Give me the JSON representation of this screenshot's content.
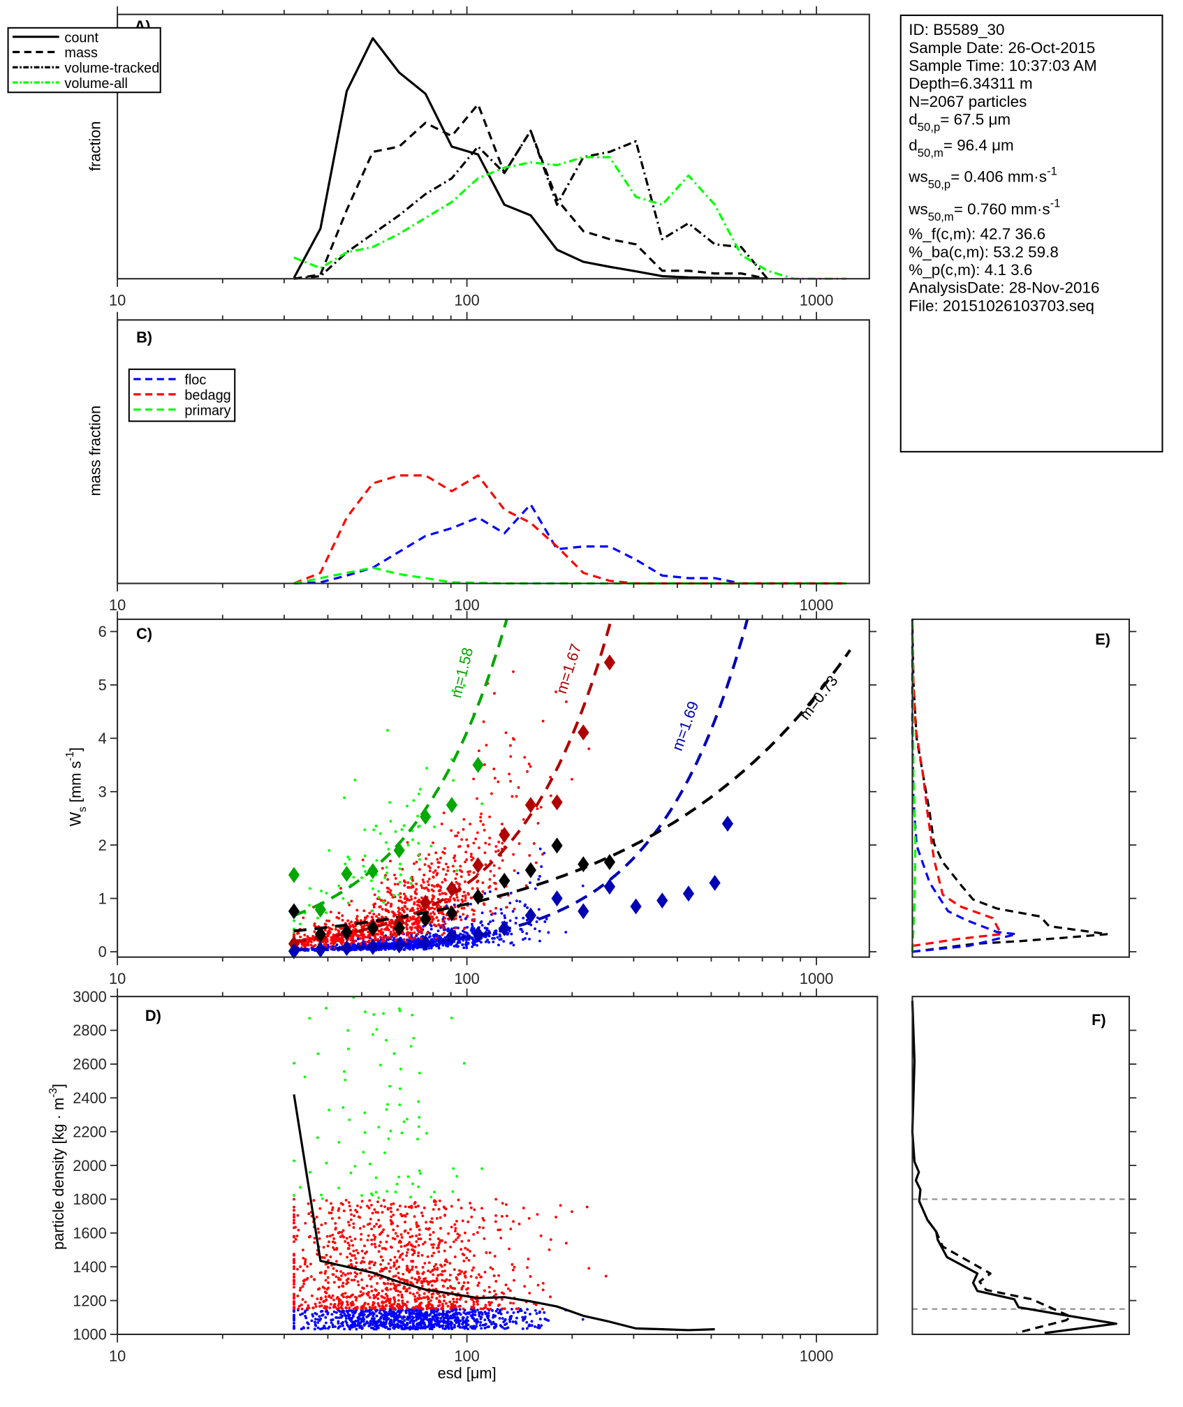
{
  "info": {
    "id": "ID: B5589_30",
    "sample_date": "Sample Date: 26-Oct-2015",
    "sample_time": "Sample Time: 10:37:03 AM",
    "depth": "Depth=6.34311 m",
    "n": "N=2067 particles",
    "d50p": {
      "base": "d",
      "sub": "50,p",
      "rest": "=  67.5 μm"
    },
    "d50m": {
      "base": "d",
      "sub": "50,m",
      "rest": "=  96.4 μm"
    },
    "ws50p": {
      "base": "ws",
      "sub": "50,p",
      "rest": "= 0.406 mm·s",
      "sup": "-1"
    },
    "ws50m": {
      "base": "ws",
      "sub": "50,m",
      "rest": "= 0.760 mm·s",
      "sup": "-1"
    },
    "pct_f": "%_f(c,m): 42.7 36.6",
    "pct_ba": "%_ba(c,m): 53.2 59.8",
    "pct_p": "%_p(c,m): 4.1 3.6",
    "analysis_date": "AnalysisDate: 28-Nov-2016",
    "file": "File: 20151026103703.seq"
  },
  "colors": {
    "floc": "#0000ff",
    "bedagg": "#ff0000",
    "primary": "#00ff00",
    "floc_dark": "#0000b4",
    "bedagg_dark": "#b00000",
    "primary_dark": "#00a800",
    "all": "#000000",
    "threshold": "#8c8c8c"
  },
  "chart_data": [
    {
      "panel": "A",
      "label": "A)",
      "type": "line",
      "ylabel": "fraction",
      "xscale": "log",
      "xlim": [
        10,
        1400
      ],
      "ylim": [
        0,
        1
      ],
      "xtick_labels": [
        "10",
        "100",
        "1000"
      ],
      "yticks": [],
      "legend": "top-left",
      "x": [
        32,
        38.1,
        45.3,
        53.8,
        64,
        76.1,
        90.5,
        107.6,
        128,
        152.2,
        181,
        215.3,
        256,
        304.4,
        362,
        430.5,
        512,
        608.9,
        724.1,
        861.1,
        1024,
        1217.7
      ],
      "series": [
        {
          "name": "count",
          "style": "solid",
          "color": "#000000",
          "values": [
            0.003,
            0.19,
            0.71,
            0.91,
            0.78,
            0.7,
            0.5,
            0.47,
            0.28,
            0.24,
            0.11,
            0.064,
            0.045,
            0.028,
            0.01,
            0.005,
            0.003,
            0.002,
            0.001,
            null,
            null,
            null
          ]
        },
        {
          "name": "mass",
          "style": "dashed",
          "color": "#000000",
          "values": [
            0,
            0.016,
            0.26,
            0.48,
            0.5,
            0.59,
            0.54,
            0.66,
            0.4,
            0.56,
            0.3,
            0.18,
            0.15,
            0.13,
            0.03,
            0.03,
            0.02,
            0.02,
            0,
            null,
            null,
            null
          ]
        },
        {
          "name": "volume-tracked",
          "style": "dashdot",
          "color": "#000000",
          "values": [
            0,
            0.01,
            0.1,
            0.17,
            0.24,
            0.32,
            0.38,
            0.5,
            0.4,
            0.56,
            0.28,
            0.46,
            0.48,
            0.52,
            0.15,
            0.21,
            0.13,
            0.12,
            0,
            null,
            null,
            null
          ]
        },
        {
          "name": "volume-all",
          "style": "dashdot",
          "color": "#00ff00",
          "values": [
            0.08,
            0.04,
            0.1,
            0.12,
            0.17,
            0.23,
            0.29,
            0.38,
            0.42,
            0.44,
            0.43,
            0.46,
            0.46,
            0.31,
            0.28,
            0.39,
            0.28,
            0.09,
            0.03,
            0,
            0,
            0
          ]
        }
      ]
    },
    {
      "panel": "B",
      "label": "B)",
      "type": "line",
      "ylabel": "mass fraction",
      "xscale": "log",
      "xlim": [
        10,
        1400
      ],
      "ylim": [
        0,
        1
      ],
      "xtick_labels": [
        "10",
        "100",
        "1000"
      ],
      "yticks": [],
      "legend": "top-left",
      "x": [
        32,
        38.1,
        45.3,
        53.8,
        64,
        76.1,
        90.5,
        107.6,
        128,
        152.2,
        181,
        215.3,
        256,
        304.4,
        362,
        430.5,
        512,
        608.9,
        724.1,
        861.1,
        1024,
        1217.7
      ],
      "series": [
        {
          "name": "floc",
          "style": "dashed",
          "color": "#0000ff",
          "values": [
            0,
            0.004,
            0.03,
            0.06,
            0.12,
            0.18,
            0.21,
            0.25,
            0.19,
            0.3,
            0.13,
            0.14,
            0.14,
            0.09,
            0.03,
            0.02,
            0.02,
            0,
            0,
            0,
            0,
            0
          ]
        },
        {
          "name": "bedagg",
          "style": "dashed",
          "color": "#ff0000",
          "values": [
            0,
            0.04,
            0.25,
            0.38,
            0.41,
            0.41,
            0.35,
            0.41,
            0.28,
            0.23,
            0.14,
            0.04,
            0.01,
            0,
            0,
            0,
            0,
            0,
            0,
            0,
            0,
            0
          ]
        },
        {
          "name": "primary",
          "style": "dashed",
          "color": "#00ff00",
          "values": [
            0,
            0.02,
            0.04,
            0.06,
            0.035,
            0.02,
            0.004,
            0.002,
            0,
            0,
            0,
            0,
            0,
            0,
            0,
            0,
            0,
            0,
            0,
            0,
            0,
            0
          ]
        }
      ]
    },
    {
      "panel": "C",
      "label": "C)",
      "type": "scatter",
      "ylabel": {
        "base": "W",
        "sub": "s",
        "rest": " [mm s",
        "sup": "-1",
        "end": "]"
      },
      "xscale": "log",
      "xlim": [
        10,
        1400
      ],
      "ylim": [
        -0.1,
        6.23
      ],
      "xtick_labels": [
        "10",
        "100",
        "1000"
      ],
      "yticks": [
        0,
        1,
        2,
        3,
        4,
        5,
        6
      ],
      "x": [
        32,
        38.1,
        45.3,
        53.8,
        64,
        76.1,
        90.5,
        107.6,
        128,
        152.2,
        181,
        215.3,
        256,
        304.4,
        362,
        430.5,
        512,
        557
      ],
      "bin_medians": [
        {
          "class": "primary",
          "color": "#00a800",
          "values": [
            1.44,
            0.79,
            1.46,
            1.51,
            1.9,
            2.53,
            2.75,
            3.5
          ]
        },
        {
          "class": "bedagg",
          "color": "#b00000",
          "values": [
            0.15,
            0.28,
            0.35,
            0.48,
            0.55,
            0.92,
            1.18,
            1.62,
            2.19,
            2.75,
            2.8,
            4.11,
            5.42
          ]
        },
        {
          "class": "all",
          "color": "#000000",
          "values": [
            0.76,
            0.33,
            0.37,
            0.44,
            0.44,
            0.61,
            0.72,
            1.03,
            1.33,
            1.53,
            1.99,
            1.64,
            1.68
          ]
        },
        {
          "class": "floc",
          "color": "#0000b4",
          "values": [
            0.01,
            0.04,
            0.07,
            0.09,
            0.12,
            0.17,
            0.3,
            0.33,
            0.44,
            0.68,
            1.0,
            0.76,
            1.22,
            0.85,
            0.96,
            1.09,
            1.29,
            2.4
          ]
        }
      ],
      "fits": [
        {
          "label": "m=1.58",
          "class": "primary",
          "color": "#00a800",
          "coef": 0.002846,
          "m": 1.58
        },
        {
          "label": "m=1.67",
          "class": "bedagg",
          "color": "#b00000",
          "coef": 0.000582,
          "m": 1.67
        },
        {
          "label": "m=1.69",
          "class": "floc",
          "color": "#0000b4",
          "coef": 0.0001144,
          "m": 1.69
        },
        {
          "label": "m=0.73",
          "class": "all",
          "color": "#000000",
          "coef": 0.03105,
          "m": 0.73,
          "esd_max": 1250
        }
      ]
    },
    {
      "panel": "D",
      "label": "D)",
      "type": "scatter",
      "ylabel": {
        "rest": "particle density [kg · m",
        "sup": "-3",
        "end": "]"
      },
      "xlabel": "esd [μm]",
      "xscale": "log",
      "xlim": [
        10,
        1500
      ],
      "ylim": [
        1000,
        3000
      ],
      "xtick_labels": [
        "10",
        "100",
        "1000"
      ],
      "yticks": [
        1000,
        1200,
        1400,
        1600,
        1800,
        2000,
        2200,
        2400,
        2600,
        2800,
        3000
      ],
      "line": {
        "x": [
          32,
          38.1,
          45.3,
          53.8,
          64,
          76.1,
          90.5,
          107.6,
          128,
          152.2,
          181,
          215.3,
          256,
          304.4,
          362,
          430.5,
          512
        ],
        "values": [
          2420,
          1435,
          1400,
          1365,
          1310,
          1265,
          1240,
          1215,
          1220,
          1195,
          1165,
          1110,
          1075,
          1035,
          1030,
          1025,
          1030
        ]
      }
    },
    {
      "panel": "E",
      "label": "E)",
      "type": "line",
      "ylim": [
        -0.1,
        6.23
      ],
      "xlim": [
        0,
        1
      ],
      "series": [
        {
          "class": "all",
          "style": "dashed",
          "color": "#000000",
          "x": [
            0,
            0.29,
            0.5,
            0.69,
            0.9,
            0.63,
            0.59,
            0.39,
            0.28,
            0.23,
            0.14,
            0.1,
            0.08,
            0.05,
            0.02,
            0.005,
            0
          ],
          "y": [
            0,
            0.15,
            0.2,
            0.26,
            0.33,
            0.48,
            0.66,
            0.81,
            0.98,
            1.22,
            1.68,
            2.03,
            2.6,
            3.3,
            4.0,
            5.05,
            6.23
          ]
        },
        {
          "class": "bedagg",
          "style": "dashed",
          "color": "#ff0000",
          "x": [
            0,
            0.21,
            0.41,
            0.37,
            0.22,
            0.14,
            0.1,
            0.07,
            0.05,
            0.016,
            0.005,
            0
          ],
          "y": [
            0.11,
            0.24,
            0.33,
            0.63,
            0.85,
            1.07,
            1.73,
            2.6,
            3.3,
            4.17,
            5.05,
            6.23
          ]
        },
        {
          "class": "floc",
          "style": "dashed",
          "color": "#0000ff",
          "x": [
            0,
            0.26,
            0.48,
            0.39,
            0.25,
            0.165,
            0.08,
            0.02,
            0.005,
            0,
            0
          ],
          "y": [
            0,
            0.11,
            0.33,
            0.37,
            0.59,
            0.76,
            1.29,
            1.99,
            2.86,
            4.2,
            6.23
          ]
        },
        {
          "class": "primary",
          "style": "dashed",
          "color": "#00ff00",
          "x": [
            0,
            0.01,
            0.014,
            0.005,
            0
          ],
          "y": [
            0,
            0.9,
            2.0,
            3.3,
            6.23
          ]
        }
      ]
    },
    {
      "panel": "F",
      "label": "F)",
      "type": "line",
      "ylim": [
        1000,
        3000
      ],
      "xlim": [
        0,
        1
      ],
      "yticks": [
        1200,
        1400,
        1600,
        1800,
        2000,
        2200,
        2400,
        2600,
        2800
      ],
      "thresholds": [
        1800,
        1150
      ],
      "series": [
        {
          "style": "solid",
          "color": "#000000",
          "x": [
            0,
            0.01,
            0,
            0.01,
            0.03,
            0.016,
            0.037,
            0.032,
            0.07,
            0.11,
            0.117,
            0.16,
            0.3,
            0.28,
            0.3,
            0.47,
            0.49,
            0.71,
            0.94,
            0.61
          ],
          "y": [
            2974,
            2615,
            2200,
            2022,
            1960,
            1912,
            1857,
            1788,
            1677,
            1608,
            1560,
            1457,
            1360,
            1305,
            1257,
            1208,
            1160,
            1112,
            1063,
            1008
          ]
        },
        {
          "style": "dashed",
          "color": "#000000",
          "x": [
            0.07,
            0.11,
            0.14,
            0.36,
            0.31,
            0.34,
            0.55,
            0.73,
            0.71,
            0.48
          ],
          "y": [
            1677,
            1608,
            1520,
            1360,
            1312,
            1263,
            1208,
            1105,
            1084,
            1008
          ]
        }
      ]
    }
  ]
}
